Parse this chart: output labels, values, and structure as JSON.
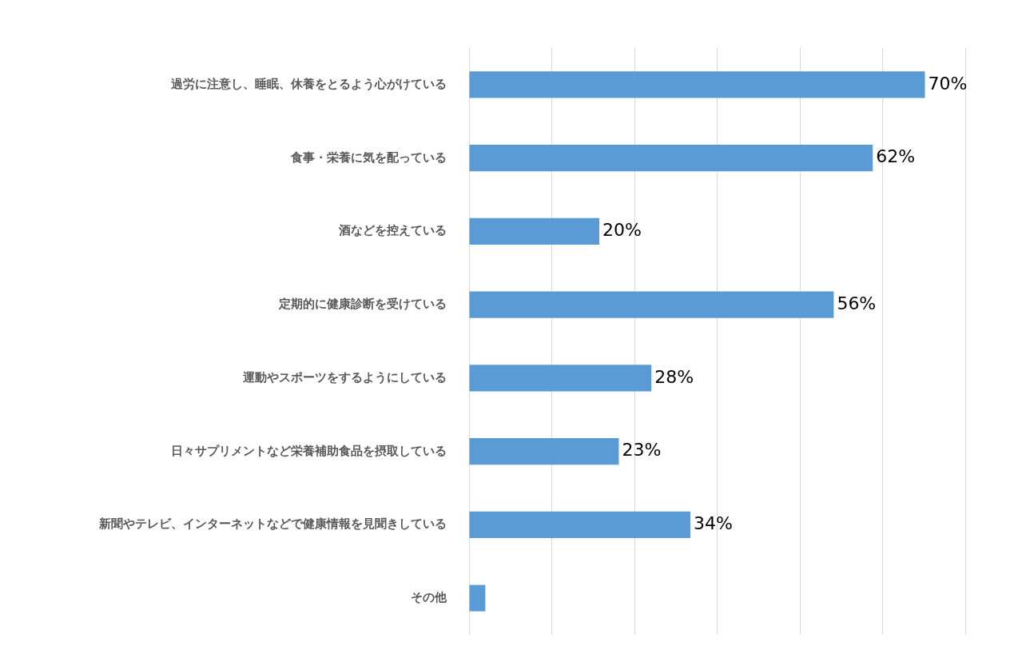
{
  "chart_data": {
    "type": "bar",
    "orientation": "horizontal",
    "categories": [
      "過労に注意し、睡眠、休養をとるよう心がけている",
      "食事・栄養に気を配っている",
      "酒などを控えている",
      "定期的に健康診断を受けている",
      "運動やスポーツをするようにしている",
      "日々サプリメントなど栄養補助食品を摂取している",
      "新聞やテレビ、インターネットなどで健康情報を見聞きしている",
      "その他"
    ],
    "values": [
      70,
      62,
      20,
      56,
      28,
      23,
      34,
      2.5
    ],
    "value_labels": [
      "70%",
      "62%",
      "20%",
      "56%",
      "28%",
      "23%",
      "34%",
      null
    ],
    "color": "#5b9bd5",
    "xlim": [
      0,
      76.2
    ],
    "xticks": [
      {
        "value": 0,
        "label": null
      },
      {
        "value": 12.7,
        "label": null
      },
      {
        "value": 25.4,
        "label": null
      },
      {
        "value": 38.1,
        "label": null
      },
      {
        "value": 50.8,
        "label": null
      },
      {
        "value": 63.5,
        "label": null
      },
      {
        "value": 76.2,
        "label": null
      }
    ],
    "grid": "x",
    "tick_labels": "y",
    "legend": false
  }
}
